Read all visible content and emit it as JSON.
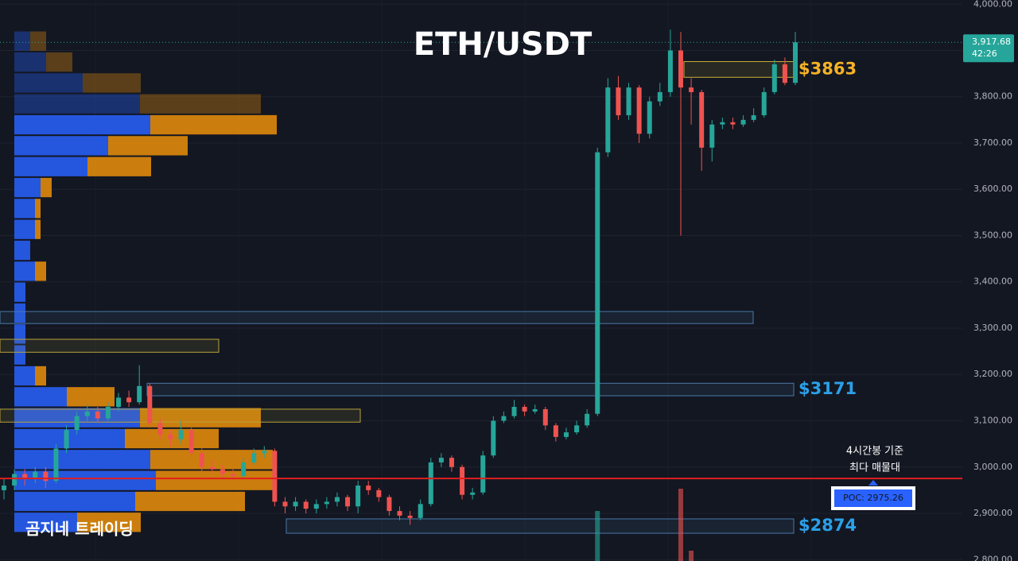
{
  "chart_data": {
    "type": "candlestick",
    "title": "ETH/USDT",
    "watermark": "곰지네 트레이딩",
    "up_color": "#26a69a",
    "down_color": "#ef5350",
    "ylim": [
      2797,
      4009
    ],
    "yticks": [
      {
        "value": 2800,
        "label": "2,800.00"
      },
      {
        "value": 2900,
        "label": "2,900.00"
      },
      {
        "value": 3000,
        "label": "3,000.00"
      },
      {
        "value": 3100,
        "label": "3,100.00"
      },
      {
        "value": 3200,
        "label": "3,200.00"
      },
      {
        "value": 3300,
        "label": "3,300.00"
      },
      {
        "value": 3400,
        "label": "3,400.00"
      },
      {
        "value": 3500,
        "label": "3,500.00"
      },
      {
        "value": 3600,
        "label": "3,600.00"
      },
      {
        "value": 3700,
        "label": "3,700.00"
      },
      {
        "value": 3800,
        "label": "3,800.00"
      },
      {
        "value": 3900,
        "label": "3,900.00"
      },
      {
        "value": 4000,
        "label": "4,000.00"
      }
    ],
    "grid": true,
    "open": [
      2950,
      2960,
      2985,
      2975,
      2990,
      2970,
      3040,
      3080,
      3110,
      3120,
      3105,
      3130,
      3150,
      3140,
      3175,
      3095,
      3070,
      3060,
      3080,
      3030,
      3000,
      2995,
      2985,
      2980,
      3010,
      3030,
      3035,
      2925,
      2915,
      2925,
      2910,
      2920,
      2925,
      2935,
      2915,
      2960,
      2950,
      2935,
      2905,
      2895,
      2890,
      2920,
      3010,
      3020,
      3000,
      2940,
      2945,
      3025,
      3100,
      3110,
      3130,
      3120,
      3125,
      3090,
      3065,
      3075,
      3090,
      3115,
      3680,
      3820,
      3760,
      3820,
      3720,
      3790,
      3810,
      3900,
      3820,
      3810,
      3690,
      3740,
      3745,
      3740,
      3750,
      3760,
      3810,
      3870,
      3830
    ],
    "high": [
      2975,
      2995,
      2995,
      3000,
      3000,
      3050,
      3090,
      3120,
      3135,
      3130,
      3140,
      3160,
      3165,
      3220,
      3180,
      3105,
      3080,
      3100,
      3085,
      3040,
      3015,
      3005,
      2995,
      3020,
      3040,
      3045,
      3040,
      2935,
      2935,
      2930,
      2930,
      2935,
      2945,
      2940,
      2970,
      2970,
      2955,
      2940,
      2915,
      2905,
      2930,
      3020,
      3030,
      3025,
      3005,
      2955,
      3035,
      3110,
      3120,
      3145,
      3135,
      3135,
      3130,
      3095,
      3085,
      3100,
      3125,
      3690,
      3840,
      3845,
      3830,
      3825,
      3800,
      3830,
      3945,
      3940,
      3840,
      3815,
      3750,
      3755,
      3755,
      3760,
      3775,
      3820,
      3880,
      3885,
      3940
    ],
    "low": [
      2930,
      2950,
      2960,
      2965,
      2955,
      2965,
      3030,
      3070,
      3100,
      3095,
      3100,
      3120,
      3130,
      3135,
      3085,
      3060,
      3045,
      3050,
      3020,
      2990,
      2985,
      2975,
      2970,
      2975,
      3005,
      3020,
      2915,
      2900,
      2905,
      2900,
      2900,
      2910,
      2915,
      2905,
      2900,
      2940,
      2925,
      2895,
      2885,
      2875,
      2885,
      2915,
      3000,
      2990,
      2930,
      2930,
      2940,
      3020,
      3095,
      3105,
      3110,
      3115,
      3080,
      3055,
      3060,
      3070,
      3085,
      3110,
      3670,
      3750,
      3750,
      3700,
      3710,
      3780,
      3800,
      3500,
      3740,
      3640,
      3660,
      3730,
      3730,
      3735,
      3745,
      3755,
      3805,
      3825,
      3825
    ],
    "close": [
      2960,
      2985,
      2975,
      2990,
      2970,
      3040,
      3080,
      3110,
      3120,
      3105,
      3130,
      3150,
      3140,
      3175,
      3095,
      3070,
      3060,
      3080,
      3030,
      3000,
      2995,
      2985,
      2980,
      3010,
      3030,
      3035,
      2925,
      2915,
      2925,
      2910,
      2920,
      2925,
      2935,
      2915,
      2960,
      2950,
      2935,
      2905,
      2895,
      2890,
      2920,
      3010,
      3020,
      3000,
      2940,
      2945,
      3025,
      3100,
      3110,
      3130,
      3120,
      3125,
      3090,
      3065,
      3075,
      3090,
      3115,
      3680,
      3820,
      3760,
      3820,
      3720,
      3790,
      3810,
      3900,
      3820,
      3810,
      3690,
      3740,
      3745,
      3740,
      3750,
      3760,
      3810,
      3870,
      3830,
      3917.68
    ],
    "volume": [
      null,
      null,
      null,
      null,
      null,
      null,
      null,
      null,
      null,
      null,
      null,
      null,
      null,
      null,
      null,
      null,
      null,
      null,
      null,
      null,
      null,
      null,
      null,
      null,
      null,
      null,
      null,
      null,
      null,
      null,
      null,
      null,
      null,
      null,
      null,
      null,
      null,
      null,
      null,
      null,
      null,
      null,
      null,
      null,
      null,
      null,
      null,
      null,
      null,
      null,
      null,
      null,
      null,
      null,
      null,
      null,
      null,
      63,
      null,
      null,
      null,
      null,
      null,
      null,
      null,
      91,
      13,
      null,
      null,
      null,
      null,
      null,
      null,
      null,
      null,
      null,
      null
    ],
    "volume_profile": {
      "bin_low": 2858,
      "bin_size": 45.2,
      "value_area_high": 3722,
      "buy_color": "#2962ff",
      "sell_color": "#e08a0b",
      "buy": [
        79,
        152,
        178,
        171,
        139,
        158,
        66,
        26,
        14,
        14,
        14,
        14,
        26,
        20,
        26,
        26,
        33,
        92,
        118,
        171,
        158,
        86,
        40,
        20
      ],
      "sell": [
        80,
        138,
        151,
        154,
        118,
        152,
        60,
        14,
        0,
        0,
        0,
        0,
        14,
        0,
        7,
        7,
        14,
        80,
        100,
        159,
        152,
        73,
        33,
        20
      ]
    },
    "zones": [
      {
        "top": 3876,
        "bottom": 3842,
        "label": "$3863",
        "color": "#c9b03a"
      },
      {
        "top": 3336,
        "bottom": 3310,
        "color": "#4a78a8"
      },
      {
        "top": 3276,
        "bottom": 3248,
        "color": "#b8a23a"
      },
      {
        "top": 3181,
        "bottom": 3154,
        "label": "$3171",
        "color": "#4a78a8"
      },
      {
        "top": 3125,
        "bottom": 3097,
        "color": "#b8a23a"
      },
      {
        "top": 2888,
        "bottom": 2857,
        "label": "$2874",
        "color": "#4a78a8"
      }
    ],
    "poc": {
      "value": 2975.26,
      "label": "POC: 2975.26",
      "color": "#e01e1e"
    },
    "poc_note": [
      "4시간봉 기준",
      "최다 매물대"
    ],
    "last_price": {
      "value": 3917.68,
      "label": "3,917.68"
    },
    "countdown": "42:26"
  }
}
